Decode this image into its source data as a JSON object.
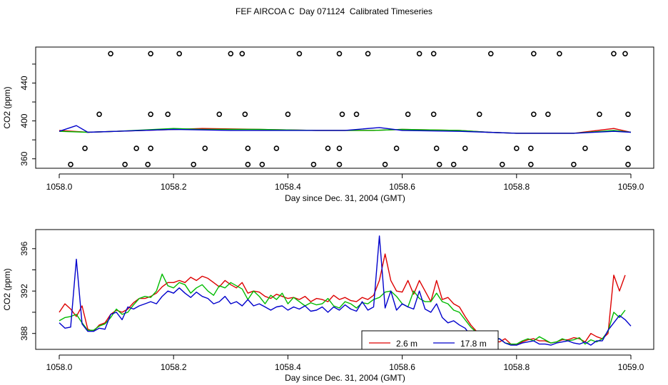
{
  "title": "FEF AIRCOA C  Day 071124  Calibrated Timeseries",
  "colors": {
    "red": "#dd0000",
    "green": "#00bb00",
    "blue": "#0000cc"
  },
  "chart_data": [
    {
      "type": "scatter",
      "xlabel": "Day since Dec. 31, 2004 (GMT)",
      "ylabel": "CO2 (ppm)",
      "xlim": [
        1058.0,
        1059.0
      ],
      "ylim": [
        350,
        478
      ],
      "xticks": [
        "1058.0",
        "1058.2",
        "1058.4",
        "1058.6",
        "1058.8",
        "1059.0"
      ],
      "yticks": [
        "360",
        "400",
        "440"
      ],
      "grid": false,
      "markers": {
        "y471": [
          1058.09,
          1058.16,
          1058.21,
          1058.3,
          1058.32,
          1058.42,
          1058.49,
          1058.54,
          1058.63,
          1058.655,
          1058.755,
          1058.83,
          1058.875,
          1058.97,
          1058.99
        ],
        "y407": [
          1058.07,
          1058.16,
          1058.19,
          1058.28,
          1058.325,
          1058.4,
          1058.495,
          1058.52,
          1058.61,
          1058.655,
          1058.735,
          1058.83,
          1058.855,
          1058.945,
          1058.995
        ],
        "y371": [
          1058.045,
          1058.135,
          1058.16,
          1058.255,
          1058.33,
          1058.38,
          1058.47,
          1058.49,
          1058.59,
          1058.66,
          1058.71,
          1058.8,
          1058.825,
          1058.92,
          1058.995
        ],
        "y354": [
          1058.02,
          1058.115,
          1058.155,
          1058.235,
          1058.33,
          1058.355,
          1058.445,
          1058.49,
          1058.57,
          1058.665,
          1058.69,
          1058.775,
          1058.825,
          1058.9,
          1058.995
        ]
      },
      "series": [
        {
          "color": "red",
          "x": [
            1058.0,
            1058.05,
            1058.1,
            1058.2,
            1058.25,
            1058.35,
            1058.45,
            1058.55,
            1058.6,
            1058.7,
            1058.75,
            1058.8,
            1058.9,
            1058.97,
            1059.0
          ],
          "y": [
            390,
            388,
            389,
            391,
            392,
            391,
            390,
            390,
            391,
            390,
            388,
            387,
            387,
            392,
            388
          ]
        },
        {
          "color": "green",
          "x": [
            1058.0,
            1058.05,
            1058.1,
            1058.2,
            1058.25,
            1058.35,
            1058.45,
            1058.55,
            1058.6,
            1058.7,
            1058.75,
            1058.8,
            1058.9,
            1058.97,
            1059.0
          ],
          "y": [
            389,
            388,
            389,
            392,
            391,
            391,
            390,
            390,
            391,
            390,
            388,
            387,
            387,
            390,
            388
          ]
        },
        {
          "color": "blue",
          "x": [
            1058.0,
            1058.03,
            1058.05,
            1058.1,
            1058.2,
            1058.3,
            1058.4,
            1058.5,
            1058.56,
            1058.6,
            1058.7,
            1058.75,
            1058.8,
            1058.9,
            1058.97,
            1059.0
          ],
          "y": [
            389,
            395,
            388,
            389,
            391,
            390,
            390,
            390,
            393,
            390,
            389,
            388,
            387,
            387,
            389,
            388
          ]
        }
      ]
    },
    {
      "type": "line",
      "xlabel": "Day since Dec. 31, 2004 (GMT)",
      "ylabel": "CO2 (ppm)",
      "xlim": [
        1058.0,
        1059.0
      ],
      "ylim": [
        386.5,
        397.8
      ],
      "xticks": [
        "1058.0",
        "1058.2",
        "1058.4",
        "1058.6",
        "1058.8",
        "1059.0"
      ],
      "yticks": [
        "388",
        "392",
        "396"
      ],
      "grid": false,
      "legend": {
        "entries": [
          {
            "label": "2.6 m",
            "color": "red"
          },
          {
            "label": "17.8 m",
            "color": "blue"
          }
        ]
      },
      "series": [
        {
          "color": "red",
          "x": [
            1058.0,
            1058.01,
            1058.02,
            1058.03,
            1058.04,
            1058.05,
            1058.06,
            1058.07,
            1058.08,
            1058.09,
            1058.1,
            1058.11,
            1058.12,
            1058.13,
            1058.14,
            1058.15,
            1058.16,
            1058.17,
            1058.18,
            1058.19,
            1058.2,
            1058.21,
            1058.22,
            1058.23,
            1058.24,
            1058.25,
            1058.26,
            1058.27,
            1058.28,
            1058.29,
            1058.3,
            1058.31,
            1058.32,
            1058.33,
            1058.34,
            1058.35,
            1058.36,
            1058.37,
            1058.38,
            1058.39,
            1058.4,
            1058.41,
            1058.42,
            1058.43,
            1058.44,
            1058.45,
            1058.46,
            1058.47,
            1058.48,
            1058.49,
            1058.5,
            1058.51,
            1058.52,
            1058.53,
            1058.54,
            1058.55,
            1058.56,
            1058.57,
            1058.58,
            1058.59,
            1058.6,
            1058.61,
            1058.62,
            1058.63,
            1058.64,
            1058.65,
            1058.66,
            1058.67,
            1058.68,
            1058.69,
            1058.7,
            1058.71,
            1058.72,
            1058.73,
            1058.74,
            1058.75,
            1058.76,
            1058.77,
            1058.78,
            1058.79,
            1058.8,
            1058.81,
            1058.82,
            1058.83,
            1058.84,
            1058.85,
            1058.86,
            1058.87,
            1058.88,
            1058.89,
            1058.9,
            1058.91,
            1058.92,
            1058.93,
            1058.94,
            1058.95,
            1058.96,
            1058.97,
            1058.98,
            1058.99
          ],
          "y": [
            390.0,
            390.8,
            390.3,
            389.6,
            390.6,
            388.4,
            388.2,
            388.8,
            389.0,
            389.8,
            390.2,
            390.0,
            390.3,
            390.9,
            391.3,
            391.3,
            391.5,
            391.8,
            392.4,
            392.8,
            392.8,
            393.0,
            392.8,
            393.3,
            393.0,
            393.4,
            393.2,
            392.8,
            392.4,
            393.0,
            392.6,
            392.3,
            392.8,
            391.8,
            392.0,
            391.9,
            391.5,
            391.3,
            391.7,
            391.5,
            391.3,
            391.4,
            391.2,
            391.5,
            391.0,
            391.3,
            391.2,
            391.0,
            391.6,
            391.2,
            391.4,
            391.1,
            391.0,
            391.4,
            391.2,
            391.6,
            393.0,
            395.5,
            393.0,
            392.0,
            391.9,
            393.0,
            391.7,
            393.0,
            392.0,
            391.0,
            393.0,
            391.2,
            391.4,
            390.8,
            390.5,
            389.6,
            388.8,
            388.2,
            387.5,
            387.6,
            387.3,
            387.2,
            387.5,
            387.0,
            386.9,
            387.2,
            387.4,
            387.5,
            387.3,
            387.3,
            387.1,
            387.2,
            387.4,
            387.4,
            387.6,
            387.5,
            387.2,
            388.0,
            387.7,
            387.5,
            388.0,
            393.5,
            392.0,
            393.5
          ]
        },
        {
          "color": "green",
          "x": [
            1058.0,
            1058.01,
            1058.02,
            1058.03,
            1058.04,
            1058.05,
            1058.06,
            1058.07,
            1058.08,
            1058.09,
            1058.1,
            1058.11,
            1058.12,
            1058.13,
            1058.14,
            1058.15,
            1058.16,
            1058.17,
            1058.18,
            1058.19,
            1058.2,
            1058.21,
            1058.22,
            1058.23,
            1058.24,
            1058.25,
            1058.26,
            1058.27,
            1058.28,
            1058.29,
            1058.3,
            1058.31,
            1058.32,
            1058.33,
            1058.34,
            1058.35,
            1058.36,
            1058.37,
            1058.38,
            1058.39,
            1058.4,
            1058.41,
            1058.42,
            1058.43,
            1058.44,
            1058.45,
            1058.46,
            1058.47,
            1058.48,
            1058.49,
            1058.5,
            1058.51,
            1058.52,
            1058.53,
            1058.54,
            1058.55,
            1058.56,
            1058.57,
            1058.58,
            1058.59,
            1058.6,
            1058.61,
            1058.62,
            1058.63,
            1058.64,
            1058.65,
            1058.66,
            1058.67,
            1058.68,
            1058.69,
            1058.7,
            1058.71,
            1058.72,
            1058.73,
            1058.74,
            1058.75,
            1058.76,
            1058.77,
            1058.78,
            1058.79,
            1058.8,
            1058.81,
            1058.82,
            1058.83,
            1058.84,
            1058.85,
            1058.86,
            1058.87,
            1058.88,
            1058.89,
            1058.9,
            1058.91,
            1058.92,
            1058.93,
            1058.94,
            1058.95,
            1058.96,
            1058.97,
            1058.98,
            1058.99
          ],
          "y": [
            389.2,
            389.5,
            389.6,
            389.8,
            389.0,
            388.3,
            388.3,
            388.7,
            388.9,
            389.5,
            390.3,
            389.8,
            390.0,
            390.7,
            391.3,
            391.5,
            391.4,
            392.0,
            393.6,
            392.5,
            392.3,
            392.8,
            392.6,
            391.8,
            392.3,
            392.6,
            392.0,
            391.6,
            392.5,
            392.3,
            392.8,
            392.5,
            392.2,
            391.2,
            392.0,
            391.5,
            390.8,
            391.6,
            391.2,
            391.8,
            390.8,
            391.4,
            391.0,
            390.6,
            390.9,
            390.7,
            390.8,
            391.3,
            390.6,
            390.4,
            391.0,
            390.8,
            390.4,
            390.9,
            390.8,
            391.2,
            391.4,
            391.9,
            392.0,
            391.5,
            390.8,
            390.5,
            392.0,
            391.3,
            391.0,
            391.0,
            391.8,
            391.0,
            390.8,
            390.2,
            390.0,
            389.3,
            388.6,
            388.1,
            387.3,
            387.8,
            387.6,
            387.5,
            387.1,
            387.0,
            387.0,
            387.3,
            387.5,
            387.3,
            387.7,
            387.4,
            387.1,
            387.2,
            387.5,
            387.3,
            387.4,
            387.6,
            387.0,
            387.4,
            387.2,
            387.5,
            388.2,
            390.0,
            389.5,
            390.2
          ]
        },
        {
          "color": "blue",
          "x": [
            1058.0,
            1058.01,
            1058.02,
            1058.03,
            1058.04,
            1058.05,
            1058.06,
            1058.07,
            1058.08,
            1058.09,
            1058.1,
            1058.11,
            1058.12,
            1058.13,
            1058.14,
            1058.15,
            1058.16,
            1058.17,
            1058.18,
            1058.19,
            1058.2,
            1058.21,
            1058.22,
            1058.23,
            1058.24,
            1058.25,
            1058.26,
            1058.27,
            1058.28,
            1058.29,
            1058.3,
            1058.31,
            1058.32,
            1058.33,
            1058.34,
            1058.35,
            1058.36,
            1058.37,
            1058.38,
            1058.39,
            1058.4,
            1058.41,
            1058.42,
            1058.43,
            1058.44,
            1058.45,
            1058.46,
            1058.47,
            1058.48,
            1058.49,
            1058.5,
            1058.51,
            1058.52,
            1058.53,
            1058.54,
            1058.55,
            1058.56,
            1058.57,
            1058.58,
            1058.59,
            1058.6,
            1058.61,
            1058.62,
            1058.63,
            1058.64,
            1058.65,
            1058.66,
            1058.67,
            1058.68,
            1058.69,
            1058.7,
            1058.71,
            1058.72,
            1058.73,
            1058.74,
            1058.75,
            1058.76,
            1058.77,
            1058.78,
            1058.79,
            1058.8,
            1058.81,
            1058.82,
            1058.83,
            1058.84,
            1058.85,
            1058.86,
            1058.87,
            1058.88,
            1058.89,
            1058.9,
            1058.91,
            1058.92,
            1058.93,
            1058.94,
            1058.95,
            1058.96,
            1058.97,
            1058.98,
            1058.99,
            1059.0
          ],
          "y": [
            389.0,
            388.5,
            388.6,
            395.0,
            388.9,
            388.2,
            388.2,
            388.5,
            388.4,
            389.8,
            390.0,
            389.3,
            390.5,
            390.3,
            390.6,
            390.8,
            391.0,
            390.8,
            391.5,
            392.0,
            391.8,
            392.3,
            391.8,
            391.4,
            391.9,
            391.5,
            391.3,
            390.8,
            391.0,
            391.5,
            390.8,
            391.0,
            390.6,
            391.2,
            390.6,
            390.8,
            390.5,
            390.2,
            390.5,
            390.6,
            390.2,
            390.5,
            390.3,
            390.6,
            390.1,
            390.2,
            390.5,
            390.0,
            390.5,
            390.2,
            390.7,
            390.3,
            390.1,
            391.0,
            390.2,
            390.5,
            397.2,
            390.4,
            392.0,
            390.2,
            390.8,
            390.5,
            390.3,
            392.0,
            390.3,
            390.0,
            390.8,
            389.5,
            389.0,
            389.2,
            388.8,
            388.5,
            387.8,
            387.8,
            387.8,
            387.4,
            387.3,
            387.5,
            387.1,
            386.9,
            386.9,
            387.1,
            387.2,
            387.3,
            387.0,
            387.0,
            386.9,
            387.1,
            387.2,
            387.3,
            387.1,
            387.0,
            387.2,
            386.9,
            387.3,
            387.3,
            388.3,
            389.0,
            389.7,
            389.3,
            388.7
          ]
        }
      ]
    }
  ]
}
